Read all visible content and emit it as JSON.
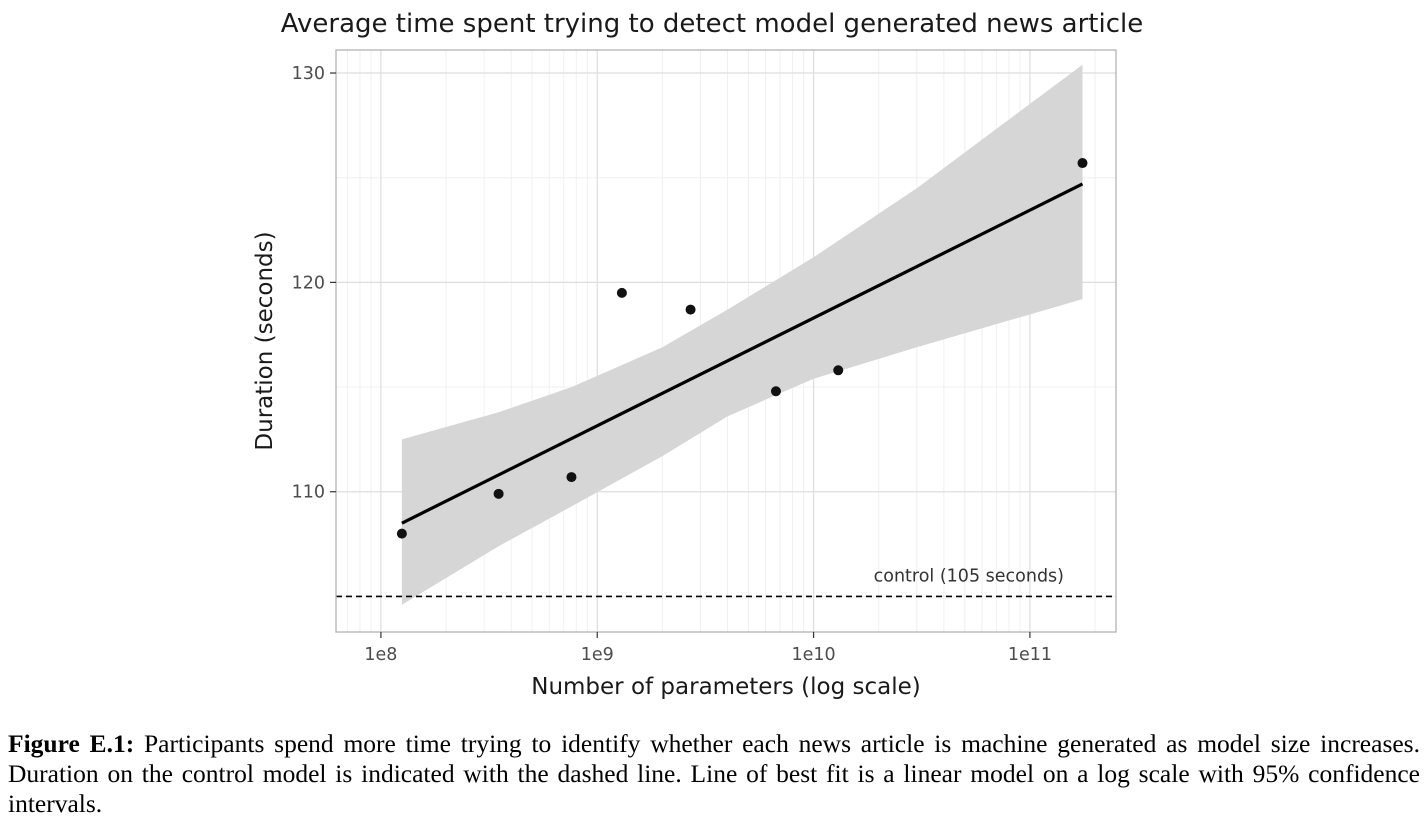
{
  "chart_data": {
    "type": "scatter",
    "title": "Average time spent trying to detect model generated news article",
    "xlabel": "Number of parameters (log scale)",
    "ylabel": "Duration (seconds)",
    "x_scale": "log",
    "xlim": [
      62000000.0,
      250000000000.0
    ],
    "ylim": [
      103.3,
      131.1
    ],
    "x_ticks": [
      100000000.0,
      1000000000.0,
      10000000000.0,
      100000000000.0
    ],
    "x_tick_labels": [
      "1e8",
      "1e9",
      "1e10",
      "1e11"
    ],
    "y_ticks": [
      110,
      120,
      130
    ],
    "y_tick_labels": [
      "110",
      "120",
      "130"
    ],
    "grid": true,
    "points": [
      {
        "x": 125000000.0,
        "y": 108.0
      },
      {
        "x": 350000000.0,
        "y": 109.9
      },
      {
        "x": 760000000.0,
        "y": 110.7
      },
      {
        "x": 1300000000.0,
        "y": 119.5
      },
      {
        "x": 2700000000.0,
        "y": 118.7
      },
      {
        "x": 6700000000.0,
        "y": 114.8
      },
      {
        "x": 13000000000.0,
        "y": 115.8
      },
      {
        "x": 175000000000.0,
        "y": 125.7
      }
    ],
    "fit_line": {
      "x": [
        125000000.0,
        175000000000.0
      ],
      "y": [
        108.5,
        124.7
      ]
    },
    "confidence_band": {
      "level": "95%",
      "x": [
        125000000.0,
        350000000.0,
        760000000.0,
        2000000000.0,
        4000000000.0,
        10000000000.0,
        30000000000.0,
        175000000000.0
      ],
      "upper": [
        112.5,
        113.8,
        115.0,
        116.9,
        118.7,
        121.2,
        124.5,
        130.4
      ],
      "lower": [
        104.6,
        107.4,
        109.3,
        111.7,
        113.6,
        115.4,
        116.9,
        119.2
      ]
    },
    "reference_line": {
      "y": 105,
      "style": "dashed",
      "label": "control (105 seconds)"
    }
  },
  "caption": {
    "label": "Figure E.1:",
    "text": "Participants spend more time trying to identify whether each news article is machine generated as model size increases. Duration on the control model is indicated with the dashed line. Line of best fit is a linear model on a log scale with 95% confidence intervals."
  }
}
